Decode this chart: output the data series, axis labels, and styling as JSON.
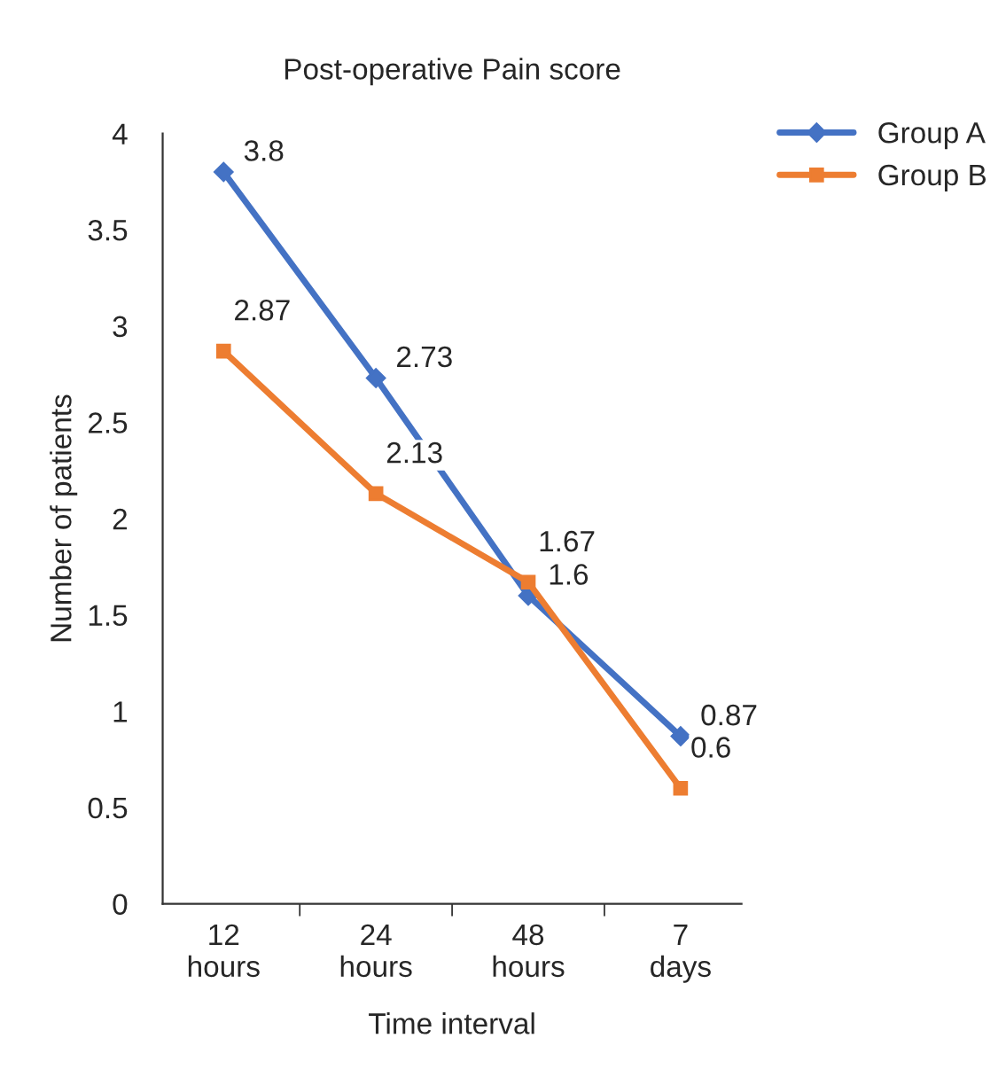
{
  "chart_data": {
    "type": "line",
    "title": "Post-operative Pain score",
    "xlabel": "Time interval",
    "ylabel": "Number of patients",
    "categories": [
      "12\nhours",
      "24\nhours",
      "48\nhours",
      "7\ndays"
    ],
    "series": [
      {
        "name": "Group A",
        "color": "#4472c4",
        "marker": "diamond",
        "values": [
          3.8,
          2.73,
          1.6,
          0.87
        ]
      },
      {
        "name": "Group B",
        "color": "#ed7d31",
        "marker": "square",
        "values": [
          2.87,
          2.13,
          1.67,
          0.6
        ]
      }
    ],
    "ylim": [
      0,
      4
    ],
    "yticks": [
      0,
      0.5,
      1,
      1.5,
      2,
      2.5,
      3,
      3.5,
      4
    ],
    "data_labels": true,
    "legend": "top right",
    "grid": false,
    "line_style": "solid"
  }
}
